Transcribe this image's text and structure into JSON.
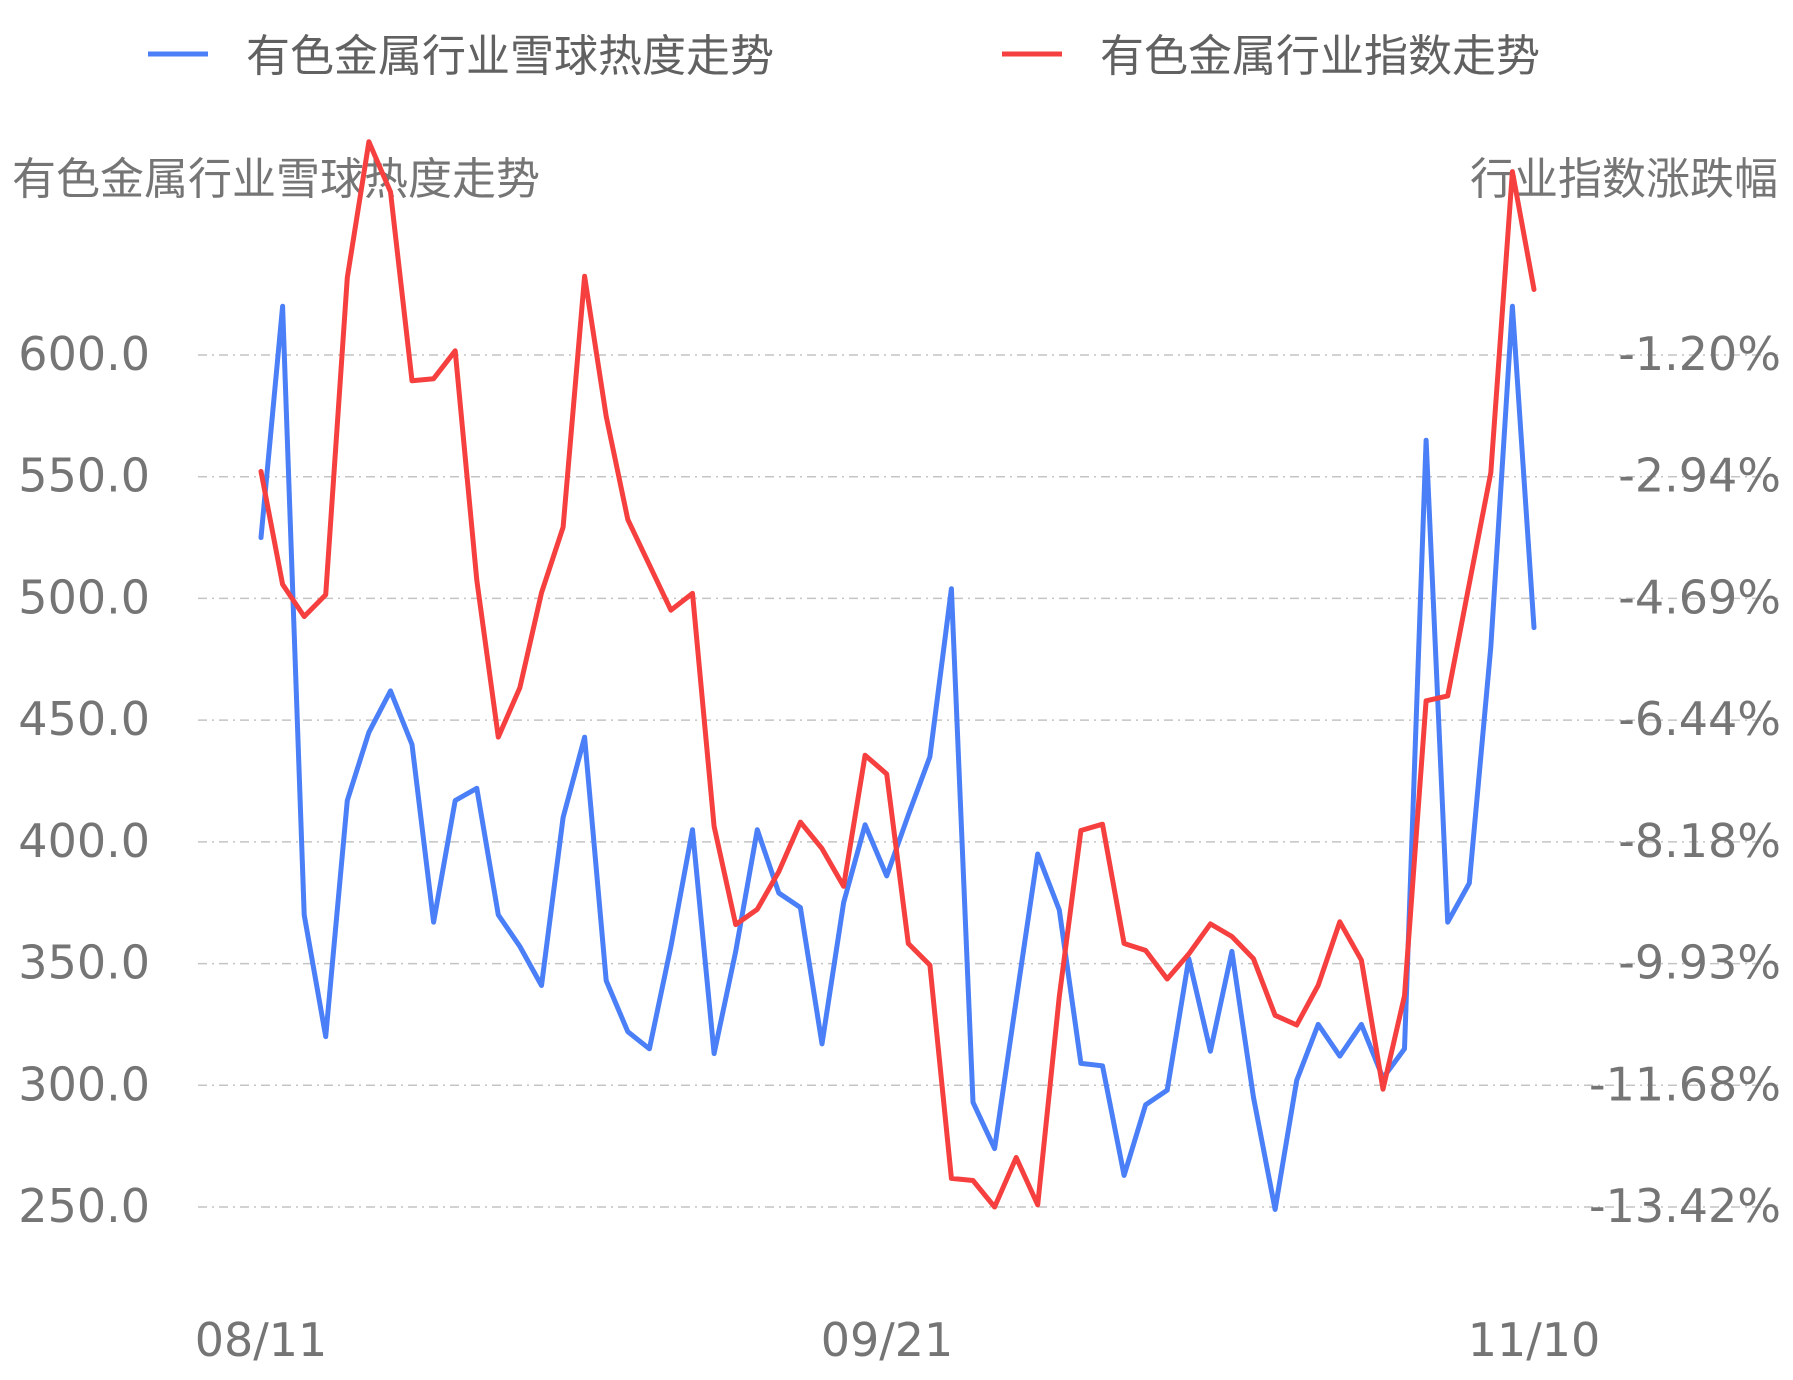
{
  "legend": [
    {
      "label": "有色金属行业雪球热度走势",
      "color": "#4a7ff7"
    },
    {
      "label": "有色金属行业指数走势",
      "color": "#f5403f"
    }
  ],
  "chart_data": {
    "type": "line",
    "left_axis_title": "有色金属行业雪球热度走势",
    "right_axis_title": "行业指数涨跌幅",
    "x_tick_labels": [
      "08/11",
      "09/21",
      "11/10"
    ],
    "left_ticks": [
      "600.0",
      "550.0",
      "500.0",
      "450.0",
      "400.0",
      "350.0",
      "300.0",
      "250.0"
    ],
    "right_ticks": [
      "-1.20%",
      "-2.94%",
      "-4.69%",
      "-6.44%",
      "-8.18%",
      "-9.93%",
      "-11.68%",
      "-13.42%"
    ],
    "left_ylim": [
      250,
      600
    ],
    "right_ylim": [
      -13.42,
      -1.2
    ],
    "grid": true,
    "legend_position": "top",
    "series": [
      {
        "name": "有色金属行业雪球热度走势",
        "axis": "left",
        "color": "#4a7ff7",
        "values": [
          525,
          620,
          370,
          320,
          417,
          445,
          462,
          440,
          367,
          417,
          422,
          370,
          357,
          341,
          410,
          443,
          343,
          322,
          315,
          357,
          405,
          313,
          355,
          405,
          379,
          373,
          317,
          375,
          407,
          386,
          411,
          435,
          504,
          293,
          274,
          335,
          395,
          372,
          309,
          308,
          263,
          292,
          298,
          352,
          314,
          355,
          295,
          249,
          302,
          325,
          312,
          325,
          303,
          315,
          565,
          367,
          383,
          480,
          620,
          488
        ]
      },
      {
        "name": "有色金属行业指数走势",
        "axis": "right",
        "color": "#f5403f",
        "values": [
          -2.87,
          -4.49,
          -4.95,
          -4.64,
          -0.09,
          1.86,
          1.14,
          -1.57,
          -1.54,
          -1.14,
          -4.43,
          -6.68,
          -5.97,
          -4.61,
          -3.67,
          -0.07,
          -2.08,
          -3.56,
          -4.21,
          -4.86,
          -4.62,
          -7.96,
          -9.37,
          -9.15,
          -8.61,
          -7.9,
          -8.28,
          -8.82,
          -6.94,
          -7.21,
          -9.64,
          -9.95,
          -13.01,
          -13.04,
          -13.42,
          -12.71,
          -13.39,
          -10.4,
          -8.02,
          -7.93,
          -9.64,
          -9.74,
          -10.15,
          -9.79,
          -9.36,
          -9.54,
          -9.86,
          -10.67,
          -10.81,
          -10.24,
          -9.33,
          -9.88,
          -11.73,
          -10.39,
          -6.16,
          -6.09,
          -4.48,
          -2.89,
          1.43,
          -0.26
        ]
      }
    ]
  }
}
